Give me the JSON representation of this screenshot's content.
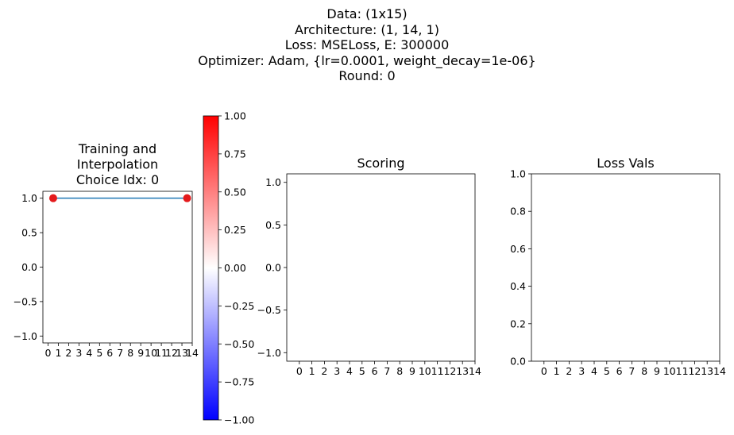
{
  "suptitle": {
    "line1": "Data: (1x15)",
    "line2": "Architecture: (1, 14, 1)",
    "line3": "Loss: MSELoss, E: 300000",
    "line4": "Optimizer: Adam, {lr=0.0001, weight_decay=1e-06}",
    "line5": "Round: 0"
  },
  "colors": {
    "line": "#1f77b4",
    "point": "#e41a1c",
    "colormap_low": "#0000ff",
    "colormap_mid": "#ffffff",
    "colormap_high": "#ff0000"
  },
  "chart_data": [
    {
      "type": "line",
      "title_lines": [
        "Training and",
        "Interpolation",
        "Choice Idx: 0"
      ],
      "xlim": [
        -0.5,
        14
      ],
      "ylim": [
        -1.1,
        1.1
      ],
      "xticks": [
        0,
        1,
        2,
        3,
        4,
        5,
        6,
        7,
        8,
        9,
        10,
        11,
        12,
        13,
        14
      ],
      "xtick_labels": [
        "0",
        "1",
        "2",
        "3",
        "4",
        "5",
        "6",
        "7",
        "8",
        "9",
        "10",
        "11",
        "12",
        "13",
        "14"
      ],
      "yticks": [
        -1.0,
        -0.5,
        0.0,
        0.5,
        1.0
      ],
      "ytick_labels": [
        "−1.0",
        "−0.5",
        "0.0",
        "0.5",
        "1.0"
      ],
      "line": {
        "x": [
          0.5,
          13.5
        ],
        "y": [
          1.0,
          1.0
        ]
      },
      "points": {
        "x": [
          0.5,
          13.5
        ],
        "y": [
          1.0,
          1.0
        ]
      },
      "grid": false
    },
    {
      "type": "colorbar",
      "vmin": -1.0,
      "vmax": 1.0,
      "ticks": [
        -1.0,
        -0.75,
        -0.5,
        -0.25,
        0.0,
        0.25,
        0.5,
        0.75,
        1.0
      ],
      "tick_labels": [
        "−1.00",
        "−0.75",
        "−0.50",
        "−0.25",
        "0.00",
        "0.25",
        "0.50",
        "0.75",
        "1.00"
      ]
    },
    {
      "type": "scatter",
      "title": "Scoring",
      "xlim": [
        -1,
        14
      ],
      "ylim": [
        -1.1,
        1.1
      ],
      "xticks": [
        0,
        1,
        2,
        3,
        4,
        5,
        6,
        7,
        8,
        9,
        10,
        11,
        12,
        13,
        14
      ],
      "xtick_labels": [
        "0",
        "1",
        "2",
        "3",
        "4",
        "5",
        "6",
        "7",
        "8",
        "9",
        "10",
        "11",
        "12",
        "13",
        "14"
      ],
      "yticks": [
        -1.0,
        -0.5,
        0.0,
        0.5,
        1.0
      ],
      "ytick_labels": [
        "−1.0",
        "−0.5",
        "0.0",
        "0.5",
        "1.0"
      ],
      "grid": false
    },
    {
      "type": "line",
      "title": "Loss Vals",
      "xlim": [
        -1,
        14
      ],
      "ylim": [
        0.0,
        1.0
      ],
      "xticks": [
        0,
        1,
        2,
        3,
        4,
        5,
        6,
        7,
        8,
        9,
        10,
        11,
        12,
        13,
        14
      ],
      "xtick_labels": [
        "0",
        "1",
        "2",
        "3",
        "4",
        "5",
        "6",
        "7",
        "8",
        "9",
        "10",
        "11",
        "12",
        "13",
        "14"
      ],
      "yticks": [
        0.0,
        0.2,
        0.4,
        0.6,
        0.8,
        1.0
      ],
      "ytick_labels": [
        "0.0",
        "0.2",
        "0.4",
        "0.6",
        "0.8",
        "1.0"
      ],
      "grid": false
    }
  ]
}
